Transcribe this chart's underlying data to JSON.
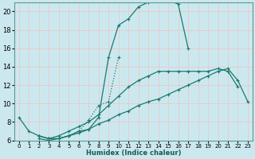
{
  "xlabel": "Humidex (Indice chaleur)",
  "ylabel": "",
  "background_color": "#cce8ef",
  "grid_color": "#e8c8c8",
  "line_color": "#1a7a6e",
  "xlim": [
    -0.5,
    23.5
  ],
  "ylim": [
    6,
    21
  ],
  "yticks": [
    6,
    8,
    10,
    12,
    14,
    16,
    18,
    20
  ],
  "xticks": [
    0,
    1,
    2,
    3,
    4,
    5,
    6,
    7,
    8,
    9,
    10,
    11,
    12,
    13,
    14,
    15,
    16,
    17,
    18,
    19,
    20,
    21,
    22,
    23
  ],
  "series": [
    {
      "linestyle": "-",
      "x": [
        0,
        1,
        2,
        3,
        4,
        5,
        6,
        7,
        8,
        9,
        10,
        11,
        12,
        13,
        14,
        15,
        16,
        17
      ],
      "y": [
        8.5,
        7.0,
        6.5,
        6.2,
        6.2,
        6.5,
        6.8,
        7.2,
        8.5,
        15.0,
        18.5,
        19.2,
        20.5,
        21.0,
        21.3,
        21.2,
        20.8,
        16.0
      ]
    },
    {
      "linestyle": ":",
      "x": [
        2,
        3,
        4,
        5,
        6,
        7,
        8,
        9,
        10
      ],
      "y": [
        6.5,
        6.2,
        6.2,
        6.5,
        7.0,
        8.2,
        9.8,
        10.2,
        15.0
      ]
    },
    {
      "linestyle": "-",
      "x": [
        2,
        3,
        4,
        5,
        6,
        7,
        8,
        9,
        10,
        11,
        12,
        13,
        14,
        15,
        16,
        17,
        18,
        19,
        20,
        21,
        22
      ],
      "y": [
        6.5,
        6.2,
        6.5,
        7.0,
        7.5,
        8.0,
        8.8,
        9.8,
        10.8,
        11.8,
        12.5,
        13.0,
        13.5,
        13.5,
        13.5,
        13.5,
        13.5,
        13.5,
        13.8,
        13.5,
        11.8
      ]
    },
    {
      "linestyle": "-",
      "x": [
        2,
        3,
        4,
        5,
        6,
        7,
        8,
        9,
        10,
        11,
        12,
        13,
        14,
        15,
        16,
        17,
        18,
        19,
        20,
        21,
        22,
        23
      ],
      "y": [
        6.2,
        6.0,
        6.2,
        6.5,
        7.0,
        7.2,
        7.8,
        8.2,
        8.8,
        9.2,
        9.8,
        10.2,
        10.5,
        11.0,
        11.5,
        12.0,
        12.5,
        13.0,
        13.5,
        13.8,
        12.5,
        10.2
      ]
    }
  ]
}
